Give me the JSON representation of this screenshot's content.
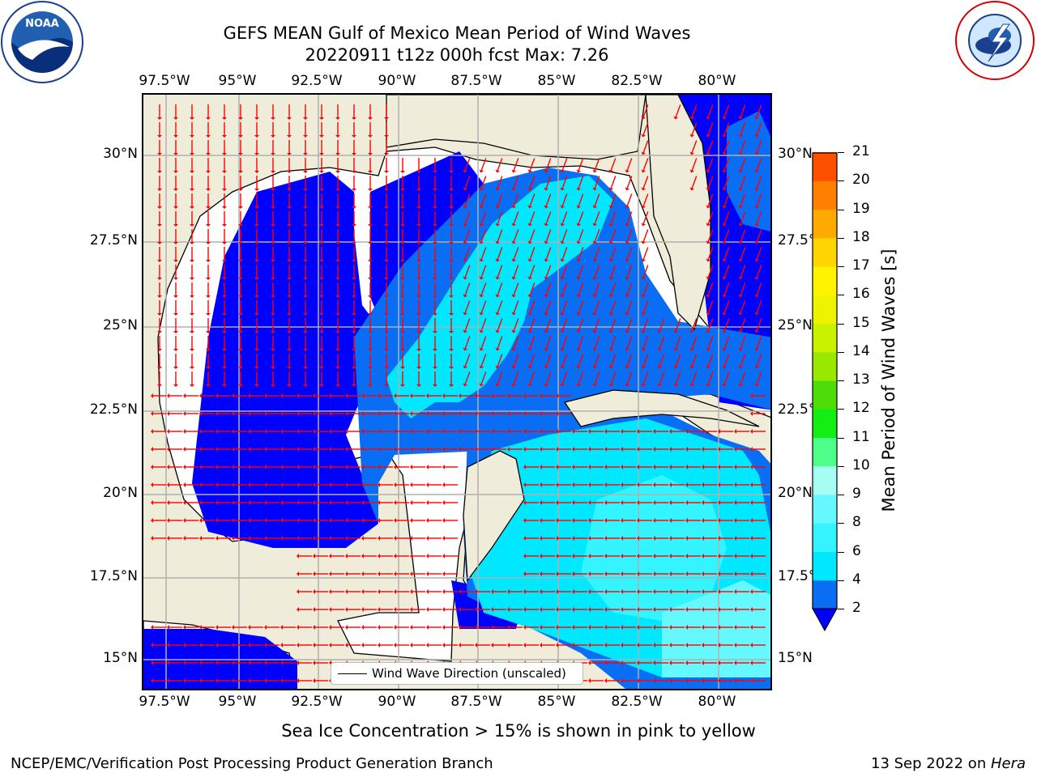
{
  "title": {
    "line1": "GEFS MEAN Gulf of Mexico Mean Period of Wind Waves",
    "line2": "20220911 t12z 000h fcst   Max: 7.26"
  },
  "logos": {
    "left": {
      "text": "NOAA",
      "ring": "NATIONAL OCEANIC AND ATMOSPHERIC ADMINISTRATION · U.S. DEPARTMENT OF COMMERCE"
    },
    "right": {
      "ring": "NATIONAL WEATHER SERVICE"
    }
  },
  "axes": {
    "lon_ticks": [
      "97.5°W",
      "95°W",
      "92.5°W",
      "90°W",
      "87.5°W",
      "85°W",
      "82.5°W",
      "80°W"
    ],
    "lat_ticks": [
      "30°N",
      "27.5°N",
      "25°N",
      "22.5°N",
      "20°N",
      "17.5°N",
      "15°N"
    ]
  },
  "colorbar": {
    "label": "Mean Period of Wind Waves [s]",
    "ticks": [
      "2",
      "4",
      "6",
      "8",
      "9",
      "10",
      "11",
      "12",
      "13",
      "14",
      "15",
      "16",
      "17",
      "18",
      "19",
      "20",
      "21"
    ],
    "colors": [
      "#0a6ef5",
      "#00e8ff",
      "#33f4ff",
      "#66f8ff",
      "#a6fdf4",
      "#4dff88",
      "#13ee13",
      "#4fdd0a",
      "#99e800",
      "#c8f200",
      "#eef400",
      "#fff400",
      "#ffd400",
      "#ffaa00",
      "#ff8000",
      "#ff5000",
      "#ff1a00"
    ],
    "extend_color": "#0000ff"
  },
  "map": {
    "land_color": "#efecda",
    "legend_label": "Wind Wave Direction (unscaled)",
    "arrow_color": "#ff0000"
  },
  "annotation": "Sea Ice Concentration > 15% is shown in pink to yellow",
  "footer": {
    "left": "NCEP/EMC/Verification Post Processing Product Generation Branch",
    "date": "13 Sep 2022 on ",
    "machine": "Hera"
  }
}
